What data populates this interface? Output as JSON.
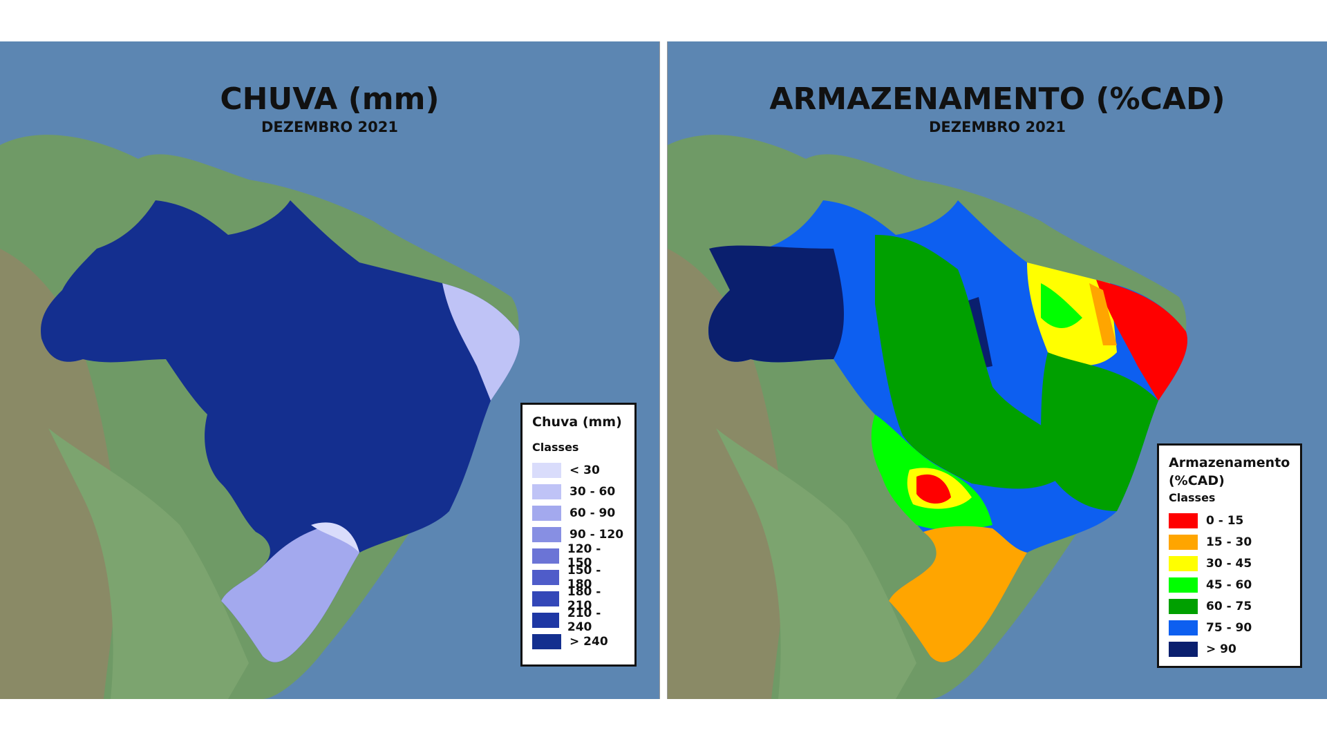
{
  "maps": [
    {
      "title": "CHUVA (mm)",
      "subtitle": "DEZEMBRO 2021",
      "legend": {
        "title": "Chuva (mm)",
        "classes_label": "Classes",
        "items": [
          {
            "label": "< 30",
            "color": "#d9dcfb"
          },
          {
            "label": "30 - 60",
            "color": "#bfc3f6"
          },
          {
            "label": "60 - 90",
            "color": "#a3a9ee"
          },
          {
            "label": "90 - 120",
            "color": "#878fe3"
          },
          {
            "label": "120 - 150",
            "color": "#6b74d6"
          },
          {
            "label": "150 - 180",
            "color": "#4f5cc9"
          },
          {
            "label": "180 - 210",
            "color": "#3347b8"
          },
          {
            "label": "210 - 240",
            "color": "#1e37a4"
          },
          {
            "label": "> 240",
            "color": "#142f8f"
          }
        ]
      }
    },
    {
      "title": "ARMAZENAMENTO (%CAD)",
      "subtitle": "DEZEMBRO 2021",
      "legend": {
        "title": "Armazenamento (%CAD)",
        "classes_label": "Classes",
        "items": [
          {
            "label": "0 - 15",
            "color": "#ff0000"
          },
          {
            "label": "15 - 30",
            "color": "#ffa500"
          },
          {
            "label": "30 - 45",
            "color": "#ffff00"
          },
          {
            "label": "45 - 60",
            "color": "#00ff00"
          },
          {
            "label": "60 - 75",
            "color": "#00a000"
          },
          {
            "label": "75 - 90",
            "color": "#0d5ff0"
          },
          {
            "label": "> 90",
            "color": "#0a1f6e"
          }
        ]
      }
    }
  ]
}
